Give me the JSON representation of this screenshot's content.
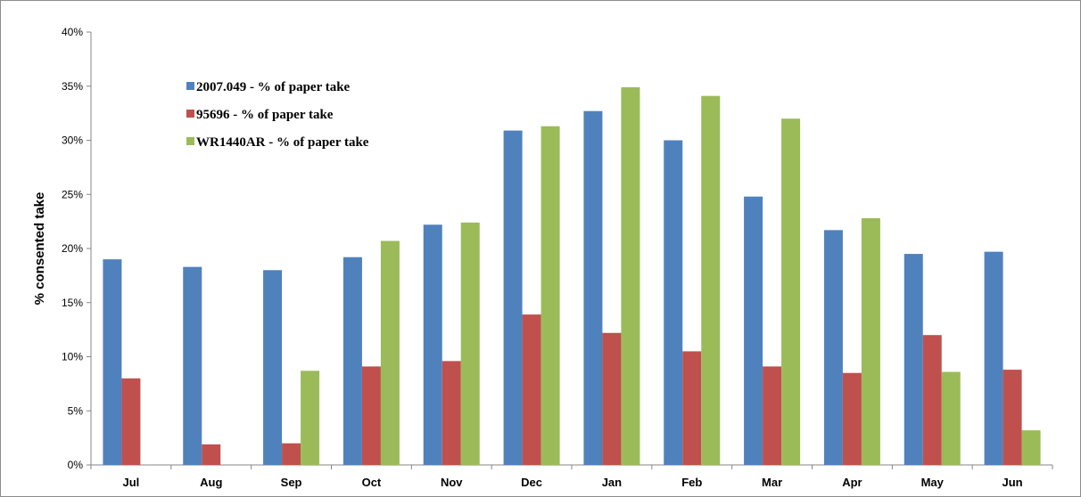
{
  "chart_data": {
    "type": "bar",
    "title": "",
    "xlabel": "",
    "ylabel": "% consented take",
    "ylim": [
      0,
      40
    ],
    "ytick_step": 5,
    "ytick_suffix": "%",
    "grid": false,
    "legend_placement": "top-left",
    "categories": [
      "Jul",
      "Aug",
      "Sep",
      "Oct",
      "Nov",
      "Dec",
      "Jan",
      "Feb",
      "Mar",
      "Apr",
      "May",
      "Jun"
    ],
    "series": [
      {
        "name": "2007.049 - % of paper take",
        "color": "#4f81bd",
        "values": [
          19.0,
          18.3,
          18.0,
          19.2,
          22.2,
          30.9,
          32.7,
          30.0,
          24.8,
          21.7,
          19.5,
          19.7
        ]
      },
      {
        "name": "95696 - % of paper take",
        "color": "#c0504d",
        "values": [
          8.0,
          1.9,
          2.0,
          9.1,
          9.6,
          13.9,
          12.2,
          10.5,
          9.1,
          8.5,
          12.0,
          8.8
        ]
      },
      {
        "name": "WR1440AR - % of paper take",
        "color": "#9bbb59",
        "values": [
          0,
          0,
          8.7,
          20.7,
          22.4,
          31.3,
          34.9,
          34.1,
          32.0,
          22.8,
          8.6,
          3.2
        ]
      }
    ]
  }
}
